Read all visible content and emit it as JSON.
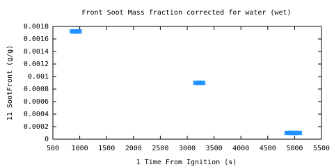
{
  "chart_data": {
    "type": "scatter",
    "title": "Front Soot Mass fraction corrected for water (wet)",
    "x_label": "1 Time From Ignition (s)",
    "y_label": "11 SootFront (g/g)",
    "series": [
      {
        "name": "SootFront",
        "color": "#1e90ff",
        "x": [
          850,
          875,
          900,
          925,
          950,
          975,
          1000,
          3150,
          3175,
          3200,
          3225,
          3250,
          3275,
          3300,
          4850,
          4875,
          4900,
          4925,
          4950,
          4975,
          5000,
          5025,
          5050,
          5075,
          5100
        ],
        "values": [
          0.00172,
          0.00172,
          0.00172,
          0.00172,
          0.00172,
          0.00172,
          0.00172,
          0.0009,
          0.0009,
          0.0009,
          0.0009,
          0.0009,
          0.0009,
          0.0009,
          0.0001,
          0.0001,
          0.0001,
          0.0001,
          0.0001,
          0.0001,
          0.0001,
          0.0001,
          0.0001,
          0.0001,
          0.0001
        ]
      }
    ],
    "xlim": [
      500,
      5500
    ],
    "xticks": [
      500,
      1000,
      1500,
      2000,
      2500,
      3000,
      3500,
      4000,
      4500,
      5000,
      5500
    ],
    "ylim": [
      0,
      0.0018
    ],
    "yticks": [
      0,
      0.0002,
      0.0004,
      0.0006,
      0.0008,
      0.001,
      0.0012,
      0.0014,
      0.0016,
      0.0018
    ]
  }
}
